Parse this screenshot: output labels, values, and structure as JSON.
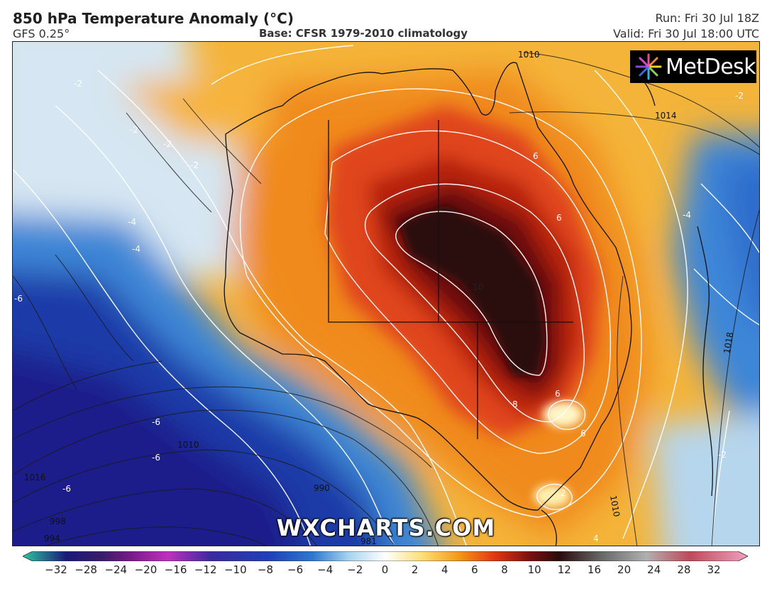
{
  "header": {
    "title": "850 hPa Temperature Anomaly (°C)",
    "model": "GFS 0.25°",
    "base": "Base: CFSR 1979-2010 climatology",
    "run": "Run: Fri 30 Jul 18Z",
    "valid": "Valid: Fri 30 Jul 18:00 UTC"
  },
  "logo": {
    "text": "MetDesk",
    "icon": "metdesk-burst-logo"
  },
  "watermark": "WXCHARTS.COM",
  "colorbar": {
    "ticks": [
      "−32",
      "−28",
      "−24",
      "−20",
      "−16",
      "−12",
      "−10",
      "−8",
      "−6",
      "−4",
      "−2",
      "0",
      "2",
      "4",
      "6",
      "8",
      "10",
      "12",
      "16",
      "20",
      "24",
      "28",
      "32"
    ],
    "colors": {
      "cold_teal": "#2ec6a0",
      "deep_blue": "#1a1a7a",
      "magenta": "#c030c0",
      "blue": "#1e64c8",
      "light_blue": "#a8d4f0",
      "white": "#ffffff",
      "yellow": "#ffe07a",
      "orange": "#f59a1a",
      "red": "#e03a10",
      "dark_red": "#7a0f0f",
      "near_black": "#2a0c0c",
      "pink": "#f0a0c0"
    }
  },
  "map_labels": {
    "isobars": [
      "1010",
      "1014",
      "1018",
      "1010",
      "990",
      "1016",
      "998",
      "994",
      "981",
      "1010"
    ],
    "anomalies": [
      "10",
      "8",
      "6",
      "6",
      "6",
      "-2",
      "-2",
      "-2",
      "-2",
      "-4",
      "-4",
      "-6",
      "-6",
      "-6",
      "-6",
      "-2",
      "-4",
      "-2",
      "4",
      "2",
      "6"
    ]
  }
}
